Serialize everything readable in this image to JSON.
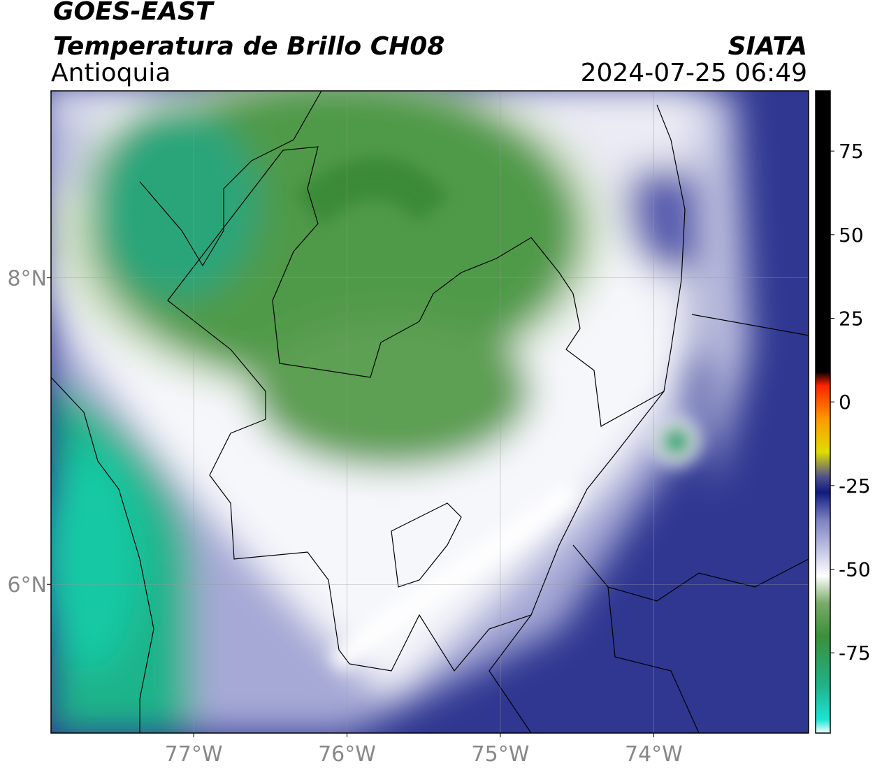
{
  "header": {
    "title": "GOES-EAST",
    "subtitle": "Temperatura de Brillo CH08",
    "region": "Antioquia",
    "source": "SIATA",
    "timestamp": "2024-07-25 06:49"
  },
  "map": {
    "xlim": [
      -77.93,
      -72.99
    ],
    "ylim": [
      5.03,
      9.22
    ],
    "xticks": [
      {
        "value": -77,
        "label": "77°W"
      },
      {
        "value": -76,
        "label": "76°W"
      },
      {
        "value": -75,
        "label": "75°W"
      },
      {
        "value": -74,
        "label": "74°W"
      }
    ],
    "yticks": [
      {
        "value": 6,
        "label": "6°N"
      },
      {
        "value": 8,
        "label": "8°N"
      }
    ],
    "grid": true
  },
  "colorbar": {
    "lim": [
      -99,
      93
    ],
    "ticks": [
      -75,
      -50,
      -25,
      0,
      25,
      50,
      75
    ],
    "stops": [
      {
        "value": -99,
        "color": "#ffffff"
      },
      {
        "value": -95,
        "color": "#1de5d6"
      },
      {
        "value": -85,
        "color": "#1fb38a"
      },
      {
        "value": -70,
        "color": "#3b8f3a"
      },
      {
        "value": -60,
        "color": "#7aab6a"
      },
      {
        "value": -52,
        "color": "#ffffff"
      },
      {
        "value": -45,
        "color": "#c9cbe6"
      },
      {
        "value": -35,
        "color": "#7a7fc0"
      },
      {
        "value": -27,
        "color": "#101a80"
      },
      {
        "value": -22,
        "color": "#55558a"
      },
      {
        "value": -15,
        "color": "#dddd00"
      },
      {
        "value": -5,
        "color": "#ff9900"
      },
      {
        "value": 5,
        "color": "#ff2200"
      },
      {
        "value": 9,
        "color": "#000000"
      },
      {
        "value": 93,
        "color": "#000000"
      }
    ]
  }
}
